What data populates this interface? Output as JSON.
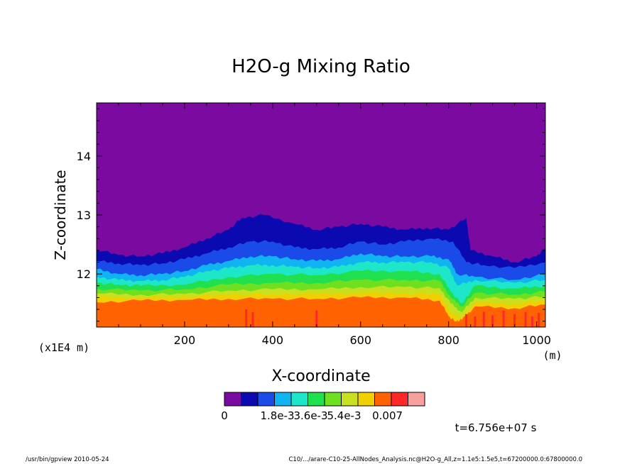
{
  "chart_data": {
    "type": "heatmap",
    "title": "H2O-g Mixing Ratio",
    "xlabel": "X-coordinate",
    "ylabel": "Z-coordinate",
    "x_unit": "(m)",
    "y_scale_note": "(x1E4 m)",
    "xlim": [
      0,
      1020
    ],
    "ylim": [
      11.1,
      14.9
    ],
    "x_ticks": [
      200,
      400,
      600,
      800,
      1000
    ],
    "y_ticks": [
      12,
      13,
      14
    ],
    "time_label": "t=6.756e+07 s",
    "colorbar": {
      "colors": [
        "#7a0aa0",
        "#0a0ab0",
        "#1a4be8",
        "#10b4f0",
        "#1ee6c8",
        "#20e050",
        "#6ee020",
        "#c8e020",
        "#f0d000",
        "#ff6200",
        "#ff2828",
        "#f8a0a0"
      ],
      "labels": [
        "0",
        "1.8e-3",
        "3.6e-3",
        "5.4e-3",
        "0.007"
      ]
    },
    "bands": [
      {
        "color": "#0a0ab0",
        "top": [
          [
            0,
            12.42
          ],
          [
            50,
            12.32
          ],
          [
            100,
            12.3
          ],
          [
            150,
            12.35
          ],
          [
            200,
            12.45
          ],
          [
            250,
            12.6
          ],
          [
            300,
            12.75
          ],
          [
            330,
            12.95
          ],
          [
            380,
            13.0
          ],
          [
            450,
            12.85
          ],
          [
            500,
            12.75
          ],
          [
            550,
            12.8
          ],
          [
            600,
            12.85
          ],
          [
            650,
            12.8
          ],
          [
            700,
            12.75
          ],
          [
            750,
            12.78
          ],
          [
            800,
            12.75
          ],
          [
            840,
            12.95
          ],
          [
            850,
            12.4
          ],
          [
            900,
            12.3
          ],
          [
            950,
            12.2
          ],
          [
            1000,
            12.3
          ],
          [
            1020,
            12.45
          ]
        ]
      },
      {
        "color": "#1a4be8",
        "top": [
          [
            0,
            12.22
          ],
          [
            50,
            12.18
          ],
          [
            100,
            12.15
          ],
          [
            150,
            12.18
          ],
          [
            200,
            12.25
          ],
          [
            250,
            12.35
          ],
          [
            300,
            12.45
          ],
          [
            350,
            12.55
          ],
          [
            400,
            12.55
          ],
          [
            450,
            12.45
          ],
          [
            500,
            12.42
          ],
          [
            550,
            12.45
          ],
          [
            600,
            12.55
          ],
          [
            650,
            12.5
          ],
          [
            700,
            12.55
          ],
          [
            760,
            12.6
          ],
          [
            810,
            12.55
          ],
          [
            840,
            12.2
          ],
          [
            880,
            12.15
          ],
          [
            950,
            12.1
          ],
          [
            1020,
            12.2
          ]
        ]
      },
      {
        "color": "#10b4f0",
        "top": [
          [
            0,
            12.08
          ],
          [
            50,
            12.0
          ],
          [
            100,
            11.98
          ],
          [
            150,
            12.0
          ],
          [
            200,
            12.05
          ],
          [
            250,
            12.15
          ],
          [
            300,
            12.22
          ],
          [
            350,
            12.3
          ],
          [
            400,
            12.3
          ],
          [
            450,
            12.25
          ],
          [
            500,
            12.22
          ],
          [
            550,
            12.25
          ],
          [
            600,
            12.35
          ],
          [
            650,
            12.3
          ],
          [
            700,
            12.3
          ],
          [
            760,
            12.3
          ],
          [
            800,
            12.25
          ],
          [
            820,
            12.0
          ],
          [
            860,
            11.95
          ],
          [
            950,
            11.9
          ],
          [
            1020,
            12.0
          ]
        ]
      },
      {
        "color": "#1ee6c8",
        "top": [
          [
            0,
            11.95
          ],
          [
            50,
            11.9
          ],
          [
            100,
            11.88
          ],
          [
            150,
            11.9
          ],
          [
            200,
            11.95
          ],
          [
            250,
            12.05
          ],
          [
            300,
            12.1
          ],
          [
            350,
            12.15
          ],
          [
            400,
            12.15
          ],
          [
            450,
            12.12
          ],
          [
            500,
            12.1
          ],
          [
            550,
            12.12
          ],
          [
            600,
            12.2
          ],
          [
            650,
            12.2
          ],
          [
            700,
            12.2
          ],
          [
            760,
            12.2
          ],
          [
            800,
            12.1
          ],
          [
            820,
            11.8
          ],
          [
            860,
            11.9
          ],
          [
            950,
            11.85
          ],
          [
            1020,
            11.9
          ]
        ]
      },
      {
        "color": "#20e050",
        "top": [
          [
            0,
            11.85
          ],
          [
            50,
            11.82
          ],
          [
            100,
            11.8
          ],
          [
            200,
            11.82
          ],
          [
            300,
            11.95
          ],
          [
            400,
            12.0
          ],
          [
            500,
            11.98
          ],
          [
            600,
            12.05
          ],
          [
            700,
            12.05
          ],
          [
            780,
            12.0
          ],
          [
            805,
            11.7
          ],
          [
            830,
            11.5
          ],
          [
            860,
            11.8
          ],
          [
            950,
            11.75
          ],
          [
            1020,
            11.8
          ]
        ]
      },
      {
        "color": "#6ee020",
        "top": [
          [
            0,
            11.75
          ],
          [
            100,
            11.72
          ],
          [
            200,
            11.74
          ],
          [
            300,
            11.82
          ],
          [
            400,
            11.85
          ],
          [
            500,
            11.85
          ],
          [
            600,
            11.9
          ],
          [
            700,
            11.9
          ],
          [
            780,
            11.88
          ],
          [
            805,
            11.6
          ],
          [
            830,
            11.45
          ],
          [
            860,
            11.68
          ],
          [
            950,
            11.65
          ],
          [
            1020,
            11.7
          ]
        ]
      },
      {
        "color": "#c8e020",
        "top": [
          [
            0,
            11.67
          ],
          [
            100,
            11.65
          ],
          [
            200,
            11.66
          ],
          [
            300,
            11.72
          ],
          [
            400,
            11.74
          ],
          [
            500,
            11.74
          ],
          [
            600,
            11.78
          ],
          [
            700,
            11.78
          ],
          [
            780,
            11.76
          ],
          [
            805,
            11.5
          ],
          [
            830,
            11.35
          ],
          [
            860,
            11.6
          ],
          [
            950,
            11.58
          ],
          [
            1020,
            11.62
          ]
        ]
      },
      {
        "color": "#f0d000",
        "top": [
          [
            0,
            11.6
          ],
          [
            100,
            11.6
          ],
          [
            200,
            11.62
          ],
          [
            300,
            11.65
          ],
          [
            400,
            11.66
          ],
          [
            500,
            11.66
          ],
          [
            600,
            11.68
          ],
          [
            700,
            11.68
          ],
          [
            780,
            11.65
          ],
          [
            805,
            11.35
          ],
          [
            830,
            11.25
          ],
          [
            860,
            11.52
          ],
          [
            950,
            11.5
          ],
          [
            1020,
            11.55
          ]
        ]
      },
      {
        "color": "#ff6200",
        "top": [
          [
            0,
            11.52
          ],
          [
            100,
            11.55
          ],
          [
            200,
            11.56
          ],
          [
            300,
            11.58
          ],
          [
            400,
            11.58
          ],
          [
            500,
            11.58
          ],
          [
            600,
            11.6
          ],
          [
            700,
            11.6
          ],
          [
            780,
            11.55
          ],
          [
            800,
            11.28
          ],
          [
            815,
            11.2
          ],
          [
            830,
            11.22
          ],
          [
            860,
            11.45
          ],
          [
            950,
            11.42
          ],
          [
            1020,
            11.48
          ]
        ]
      }
    ],
    "hot_spots": [
      [
        340,
        11.4
      ],
      [
        355,
        11.35
      ],
      [
        500,
        11.38
      ],
      [
        840,
        11.32
      ],
      [
        860,
        11.28
      ],
      [
        880,
        11.36
      ],
      [
        900,
        11.3
      ],
      [
        925,
        11.38
      ],
      [
        950,
        11.32
      ],
      [
        975,
        11.35
      ],
      [
        990,
        11.28
      ],
      [
        1005,
        11.34
      ]
    ]
  },
  "footer": {
    "left": "/usr/bin/gpview  2010-05-24",
    "right": "C10/.../arare-C10-25-AllNodes_Analysis.nc@H2O-g_All,z=1.1e5:1.5e5,t=67200000.0:67800000.0"
  }
}
